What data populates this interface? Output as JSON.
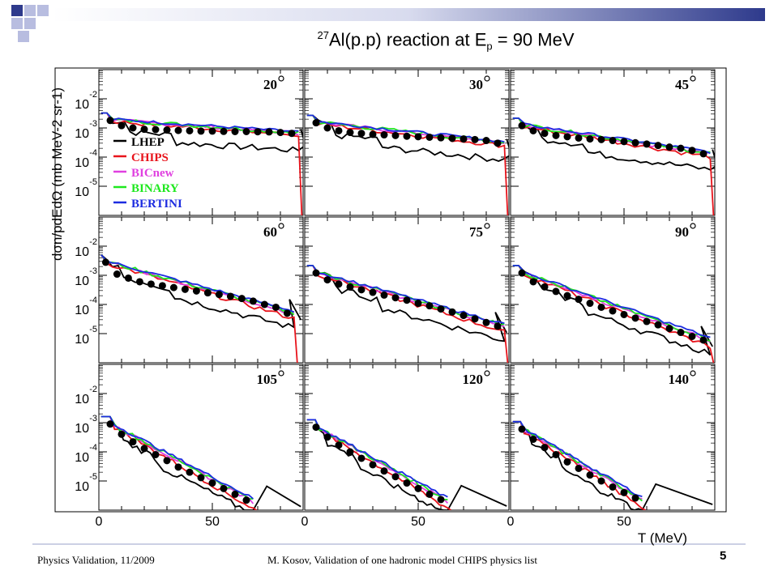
{
  "slide": {
    "title_sup": "27",
    "title_main": "Al(p.p) reaction at E",
    "title_sub": "p",
    "title_tail": " = 90 MeV",
    "footer_left": "Physics Validation, 11/2009",
    "footer_center": "M. Kosov,  Validation of one hadronic model CHIPS physics list",
    "slide_number": "5",
    "accent_colors": {
      "blue": "#2e3a8c",
      "light_blue": "#b8bde0",
      "rule": "#9aa0c8"
    }
  },
  "chart_data": {
    "type": "line",
    "y_scale": "log",
    "xlabel": "T (MeV)",
    "ylabel": "dσn/pdEdΩ (mb MeV-2 sr-1)",
    "xlim": [
      0,
      90
    ],
    "ylim": [
      1e-06,
      0.1
    ],
    "x_ticks": [
      "0",
      "50"
    ],
    "y_tick_labels": [
      {
        "base": "10",
        "exp": "-2"
      },
      {
        "base": "10",
        "exp": "-3"
      },
      {
        "base": "10",
        "exp": "-4"
      },
      {
        "base": "10",
        "exp": "-5"
      }
    ],
    "legend": {
      "placement": "left",
      "entries": [
        {
          "name": "LHEP",
          "color": "#000000"
        },
        {
          "name": "CHIPS",
          "color": "#e8141c"
        },
        {
          "name": "BICnew",
          "color": "#e040e0"
        },
        {
          "name": "BINARY",
          "color": "#1ee81e"
        },
        {
          "name": "BERTINI",
          "color": "#1c2ce0"
        }
      ]
    },
    "panels": [
      {
        "angle": "20",
        "data_x": [
          5,
          10,
          15,
          20,
          25,
          30,
          35,
          40,
          45,
          50,
          55,
          60,
          65,
          70,
          75,
          80,
          85
        ],
        "data_y": [
          0.0018,
          0.0012,
          0.001,
          0.0009,
          0.00088,
          0.00085,
          0.00082,
          0.0008,
          0.00078,
          0.00078,
          0.00076,
          0.00075,
          0.00075,
          0.00074,
          0.00073,
          0.0007,
          0.00065
        ]
      },
      {
        "angle": "30",
        "data_x": [
          5,
          10,
          15,
          20,
          25,
          30,
          35,
          40,
          45,
          50,
          55,
          60,
          65,
          70,
          75,
          80,
          85
        ],
        "data_y": [
          0.0015,
          0.001,
          0.0008,
          0.0007,
          0.00065,
          0.0006,
          0.00058,
          0.00055,
          0.00052,
          0.0005,
          0.00048,
          0.00046,
          0.00044,
          0.00042,
          0.0004,
          0.00037,
          0.0003
        ]
      },
      {
        "angle": "45",
        "data_x": [
          5,
          10,
          15,
          20,
          25,
          30,
          35,
          40,
          45,
          50,
          55,
          60,
          65,
          70,
          75,
          80,
          85
        ],
        "data_y": [
          0.0012,
          0.0008,
          0.00065,
          0.00055,
          0.0005,
          0.00045,
          0.00042,
          0.0004,
          0.00037,
          0.00034,
          0.00031,
          0.00028,
          0.00025,
          0.00022,
          0.0002,
          0.00017,
          0.00013
        ]
      },
      {
        "angle": "60",
        "data_x": [
          3,
          8,
          13,
          18,
          23,
          28,
          33,
          38,
          43,
          48,
          53,
          58,
          63,
          68,
          73,
          78,
          83
        ],
        "data_y": [
          0.0028,
          0.0011,
          0.0008,
          0.0006,
          0.0005,
          0.00044,
          0.00038,
          0.00033,
          0.00029,
          0.00025,
          0.00022,
          0.00019,
          0.00016,
          0.00013,
          0.0001,
          8e-05,
          5e-05
        ]
      },
      {
        "angle": "75",
        "data_x": [
          5,
          10,
          15,
          20,
          25,
          30,
          35,
          40,
          45,
          50,
          55,
          60,
          65,
          70,
          75,
          80,
          85
        ],
        "data_y": [
          0.0012,
          0.0007,
          0.0005,
          0.0004,
          0.00032,
          0.00026,
          0.00021,
          0.00017,
          0.00014,
          0.00011,
          9e-05,
          7e-05,
          5.5e-05,
          4.2e-05,
          3.2e-05,
          2.4e-05,
          1.8e-05
        ]
      },
      {
        "angle": "90",
        "data_x": [
          5,
          10,
          15,
          20,
          25,
          30,
          35,
          40,
          45,
          50,
          55,
          60,
          65,
          70,
          75,
          80,
          85
        ],
        "data_y": [
          0.0012,
          0.0006,
          0.0004,
          0.00028,
          0.0002,
          0.00015,
          0.00011,
          8e-05,
          6e-05,
          4.5e-05,
          3.4e-05,
          2.6e-05,
          2e-05,
          1.5e-05,
          1.1e-05,
          8e-06,
          6e-06
        ]
      },
      {
        "angle": "105",
        "data_x": [
          5,
          10,
          15,
          20,
          25,
          30,
          35,
          40,
          45,
          50,
          55,
          60,
          65
        ],
        "data_y": [
          0.0009,
          0.0004,
          0.00022,
          0.00013,
          8e-05,
          5e-05,
          3e-05,
          2e-05,
          1.3e-05,
          8.5e-06,
          5.5e-06,
          3.5e-06,
          2.2e-06
        ]
      },
      {
        "angle": "120",
        "data_x": [
          5,
          10,
          15,
          20,
          25,
          30,
          35,
          40,
          45,
          50,
          55,
          60
        ],
        "data_y": [
          0.0007,
          0.00032,
          0.00017,
          0.0001,
          6e-05,
          3.6e-05,
          2.2e-05,
          1.4e-05,
          8.5e-06,
          5.5e-06,
          3.5e-06,
          2.3e-06
        ]
      },
      {
        "angle": "140",
        "data_x": [
          5,
          10,
          15,
          20,
          25,
          30,
          35,
          40,
          45,
          50,
          55
        ],
        "data_y": [
          0.0006,
          0.00027,
          0.00014,
          8e-05,
          4.5e-05,
          2.7e-05,
          1.6e-05,
          1e-05,
          6.2e-06,
          4e-06,
          2.6e-06
        ]
      }
    ]
  }
}
